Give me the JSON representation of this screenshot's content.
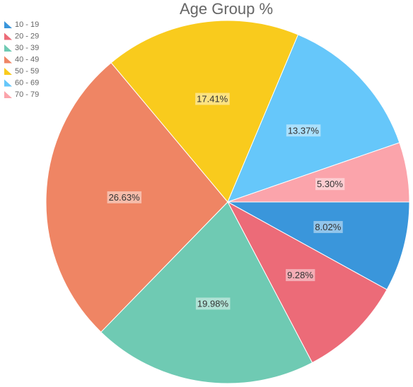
{
  "chart_data": {
    "type": "pie",
    "title": "Age Group %",
    "categories": [
      "10 - 19",
      "20 - 29",
      "30 - 39",
      "40 - 49",
      "50 - 59",
      "60 - 69",
      "70 - 79"
    ],
    "values": [
      8.02,
      9.28,
      19.98,
      26.63,
      17.41,
      13.37,
      5.3
    ],
    "value_labels": [
      "8.02%",
      "9.28%",
      "19.98%",
      "26.63%",
      "17.41%",
      "13.37%",
      "5.30%"
    ],
    "colors": [
      "#3a96db",
      "#ec6b78",
      "#6fcab3",
      "#ef8564",
      "#f9cb1d",
      "#66c7fa",
      "#fba4ab"
    ],
    "legend": "top-left"
  }
}
